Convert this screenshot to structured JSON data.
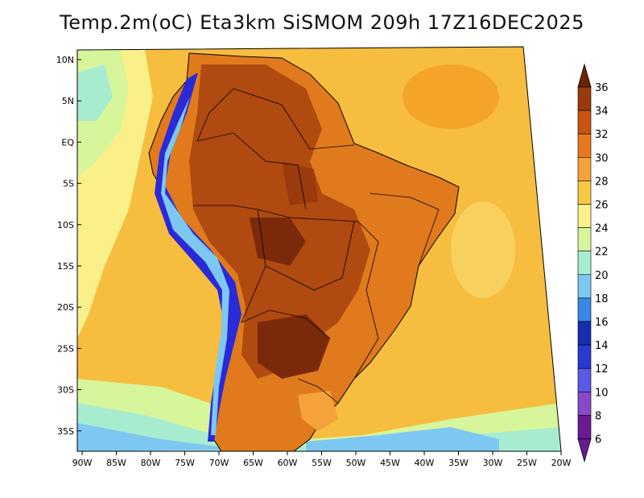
{
  "title": "Temp.2m(oC) Eta3km SiSMOM 209h 17Z16DEC2025",
  "map": {
    "lat_labels": [
      "10N",
      "5N",
      "EQ",
      "5S",
      "10S",
      "15S",
      "20S",
      "25S",
      "30S",
      "35S"
    ],
    "lon_labels": [
      "90W",
      "85W",
      "80W",
      "75W",
      "70W",
      "65W",
      "60W",
      "55W",
      "50W",
      "45W",
      "40W",
      "35W",
      "30W",
      "25W",
      "20W"
    ]
  },
  "colorbar": {
    "labels": [
      "36",
      "34",
      "32",
      "30",
      "28",
      "26",
      "24",
      "22",
      "20",
      "18",
      "16",
      "14",
      "12",
      "10",
      "8",
      "6"
    ],
    "colors": [
      "#6a2309",
      "#9b3a0d",
      "#c85412",
      "#e8781d",
      "#f4a23a",
      "#f8c845",
      "#faf08a",
      "#d7f59a",
      "#a8ecd0",
      "#7cc8f2",
      "#3a86e6",
      "#1430b0",
      "#2a3ad0",
      "#5a5ae6",
      "#8848c8",
      "#6a1a92"
    ]
  },
  "colors": {
    "ocean": "#f6ba3a",
    "ocean_warm": "#f4a528",
    "land": "#e07a1d",
    "land_hot": "#9b3a0d",
    "andes": "#2a2ad8"
  }
}
